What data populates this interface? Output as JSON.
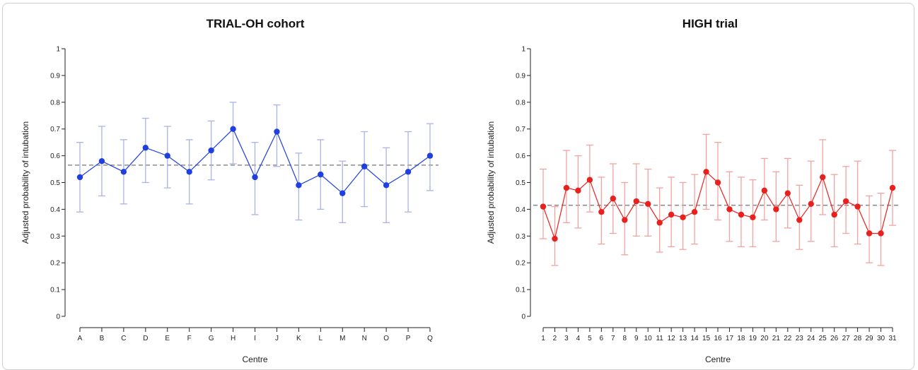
{
  "charts": [
    {
      "type": "line",
      "title": "TRIAL-OH cohort",
      "xlabel": "Centre",
      "ylabel": "Adjusted probability of intubation",
      "ylim": [
        0,
        1
      ],
      "yticks": [
        "0",
        "0.1",
        "0.2",
        "0.3",
        "0.4",
        "0.5",
        "0.6",
        "0.7",
        "0.8",
        "0.9",
        "1"
      ],
      "categories": [
        "A",
        "B",
        "C",
        "D",
        "E",
        "F",
        "G",
        "H",
        "I",
        "J",
        "K",
        "L",
        "M",
        "N",
        "O",
        "P",
        "Q"
      ],
      "values": [
        0.52,
        0.58,
        0.54,
        0.63,
        0.6,
        0.54,
        0.62,
        0.7,
        0.52,
        0.69,
        0.49,
        0.53,
        0.46,
        0.56,
        0.49,
        0.54,
        0.6
      ],
      "lower": [
        0.39,
        0.45,
        0.42,
        0.5,
        0.48,
        0.42,
        0.51,
        0.57,
        0.38,
        0.56,
        0.36,
        0.4,
        0.35,
        0.41,
        0.35,
        0.39,
        0.47
      ],
      "upper": [
        0.65,
        0.71,
        0.66,
        0.74,
        0.71,
        0.66,
        0.73,
        0.8,
        0.65,
        0.79,
        0.61,
        0.66,
        0.58,
        0.69,
        0.63,
        0.69,
        0.72
      ],
      "reference": 0.565,
      "color": "#1f3fe0",
      "error_color": "#aab3e6"
    },
    {
      "type": "line",
      "title": "HIGH trial",
      "xlabel": "Centre",
      "ylabel": "Adjusted probability of intubation",
      "ylim": [
        0,
        1
      ],
      "yticks": [
        "0",
        "0.1",
        "0.2",
        "0.3",
        "0.4",
        "0.5",
        "0.6",
        "0.7",
        "0.8",
        "0.9",
        "1"
      ],
      "categories": [
        "1",
        "2",
        "3",
        "4",
        "5",
        "6",
        "7",
        "8",
        "9",
        "10",
        "11",
        "12",
        "13",
        "14",
        "15",
        "16",
        "17",
        "18",
        "19",
        "20",
        "21",
        "22",
        "23",
        "24",
        "25",
        "26",
        "27",
        "28",
        "29",
        "30",
        "31"
      ],
      "values": [
        0.41,
        0.29,
        0.48,
        0.47,
        0.51,
        0.39,
        0.44,
        0.36,
        0.43,
        0.42,
        0.35,
        0.38,
        0.37,
        0.39,
        0.54,
        0.5,
        0.4,
        0.38,
        0.37,
        0.47,
        0.4,
        0.46,
        0.36,
        0.42,
        0.52,
        0.38,
        0.43,
        0.41,
        0.31,
        0.31,
        0.48
      ],
      "lower": [
        0.29,
        0.19,
        0.35,
        0.33,
        0.39,
        0.27,
        0.31,
        0.23,
        0.3,
        0.3,
        0.24,
        0.26,
        0.25,
        0.27,
        0.4,
        0.36,
        0.28,
        0.26,
        0.26,
        0.36,
        0.28,
        0.33,
        0.25,
        0.28,
        0.38,
        0.26,
        0.31,
        0.27,
        0.2,
        0.19,
        0.34
      ],
      "upper": [
        0.55,
        0.41,
        0.62,
        0.6,
        0.64,
        0.52,
        0.57,
        0.5,
        0.57,
        0.55,
        0.48,
        0.52,
        0.5,
        0.53,
        0.68,
        0.65,
        0.54,
        0.52,
        0.51,
        0.59,
        0.54,
        0.59,
        0.49,
        0.58,
        0.66,
        0.53,
        0.56,
        0.58,
        0.45,
        0.46,
        0.62
      ],
      "reference": 0.415,
      "color": "#e8211e",
      "error_color": "#f2a3a0"
    }
  ]
}
